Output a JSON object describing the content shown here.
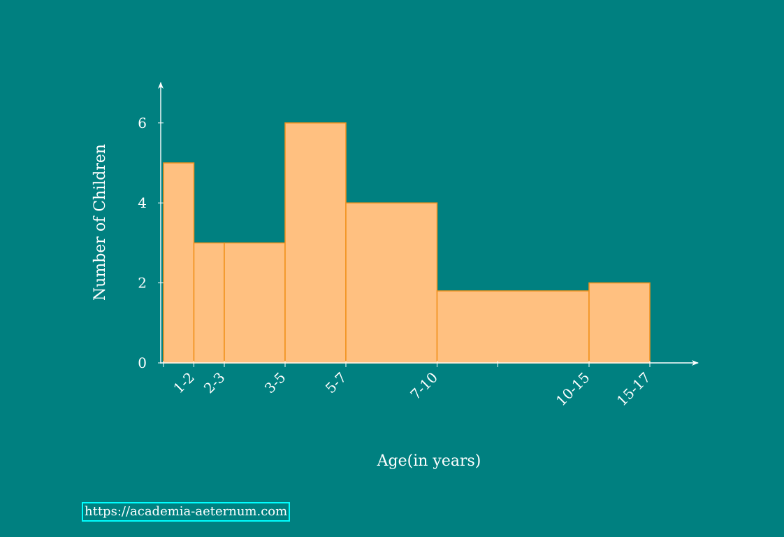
{
  "chart_data": {
    "type": "bar",
    "histogram": true,
    "xlabel": "Age(in years)",
    "ylabel": "Number of Children",
    "ylim": [
      0,
      7
    ],
    "yticks": [
      0,
      2,
      4,
      6
    ],
    "grid": false,
    "bins": [
      {
        "label": "1-2",
        "start": 1,
        "end": 2,
        "value": 5
      },
      {
        "label": "2-3",
        "start": 2,
        "end": 3,
        "value": 3
      },
      {
        "label": "3-5",
        "start": 3,
        "end": 5,
        "value": 3
      },
      {
        "label": "5-7",
        "start": 5,
        "end": 7,
        "value": 6
      },
      {
        "label": "7-10",
        "start": 7,
        "end": 10,
        "value": 4
      },
      {
        "label": "10-15",
        "start": 10,
        "end": 15,
        "value": 1.8
      },
      {
        "label": "15-17",
        "start": 15,
        "end": 17,
        "value": 2
      }
    ],
    "colors": {
      "bar_fill": "#ffc080",
      "bar_edge": "#f0901a",
      "background": "#008080",
      "axis": "#ffffff"
    }
  },
  "footer": {
    "source_url": "https://academia-aeternum.com"
  }
}
